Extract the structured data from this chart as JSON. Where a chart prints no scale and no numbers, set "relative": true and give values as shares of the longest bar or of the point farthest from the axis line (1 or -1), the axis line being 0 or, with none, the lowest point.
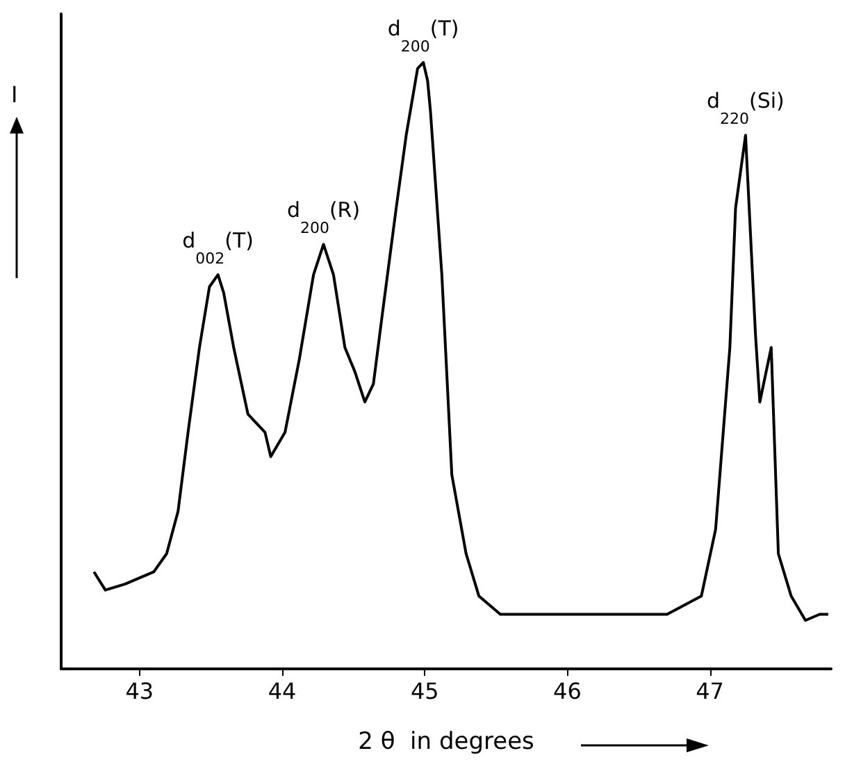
{
  "chart_data": {
    "type": "line",
    "relative": true,
    "xlabel": "2 θ  in degrees",
    "ylabel": "I",
    "xlim": [
      42.45,
      47.85
    ],
    "xticks": [
      43,
      44,
      45,
      46,
      47
    ],
    "annotations": [
      {
        "text": "d$_{002}$(T)",
        "x": 43.55,
        "y": 0.65
      },
      {
        "text": "d$_{200}$(R)",
        "x": 44.29,
        "y": 0.7
      },
      {
        "text": "d$_{200}$(T)",
        "x": 44.99,
        "y": 1
      },
      {
        "text": "d$_{220}$(Si)",
        "x": 47.25,
        "y": 0.88
      }
    ],
    "series": [
      {
        "color": "#000000",
        "x": [
          42.68,
          42.76,
          42.9,
          43.1,
          43.19,
          43.27,
          43.34,
          43.42,
          43.49,
          43.55,
          43.59,
          43.66,
          43.76,
          43.88,
          43.92,
          44.02,
          44.12,
          44.22,
          44.29,
          44.36,
          44.44,
          44.51,
          44.58,
          44.64,
          44.7,
          44.8,
          44.87,
          44.95,
          44.99,
          45.02,
          45.04,
          45.12,
          45.19,
          45.29,
          45.38,
          45.53,
          45.73,
          46.11,
          46.7,
          46.94,
          47.04,
          47.14,
          47.18,
          47.25,
          47.32,
          47.35,
          47.43,
          47.48,
          47.57,
          47.67,
          47.77,
          47.83
        ],
        "values": [
          0.16,
          0.13,
          0.14,
          0.16,
          0.19,
          0.26,
          0.39,
          0.53,
          0.63,
          0.65,
          0.62,
          0.53,
          0.42,
          0.39,
          0.35,
          0.39,
          0.51,
          0.65,
          0.7,
          0.65,
          0.53,
          0.49,
          0.44,
          0.47,
          0.58,
          0.76,
          0.88,
          0.99,
          1,
          0.97,
          0.92,
          0.65,
          0.32,
          0.19,
          0.12,
          0.09,
          0.09,
          0.09,
          0.09,
          0.12,
          0.23,
          0.53,
          0.76,
          0.88,
          0.55,
          0.44,
          0.53,
          0.19,
          0.12,
          0.08,
          0.09,
          0.09
        ]
      }
    ]
  }
}
